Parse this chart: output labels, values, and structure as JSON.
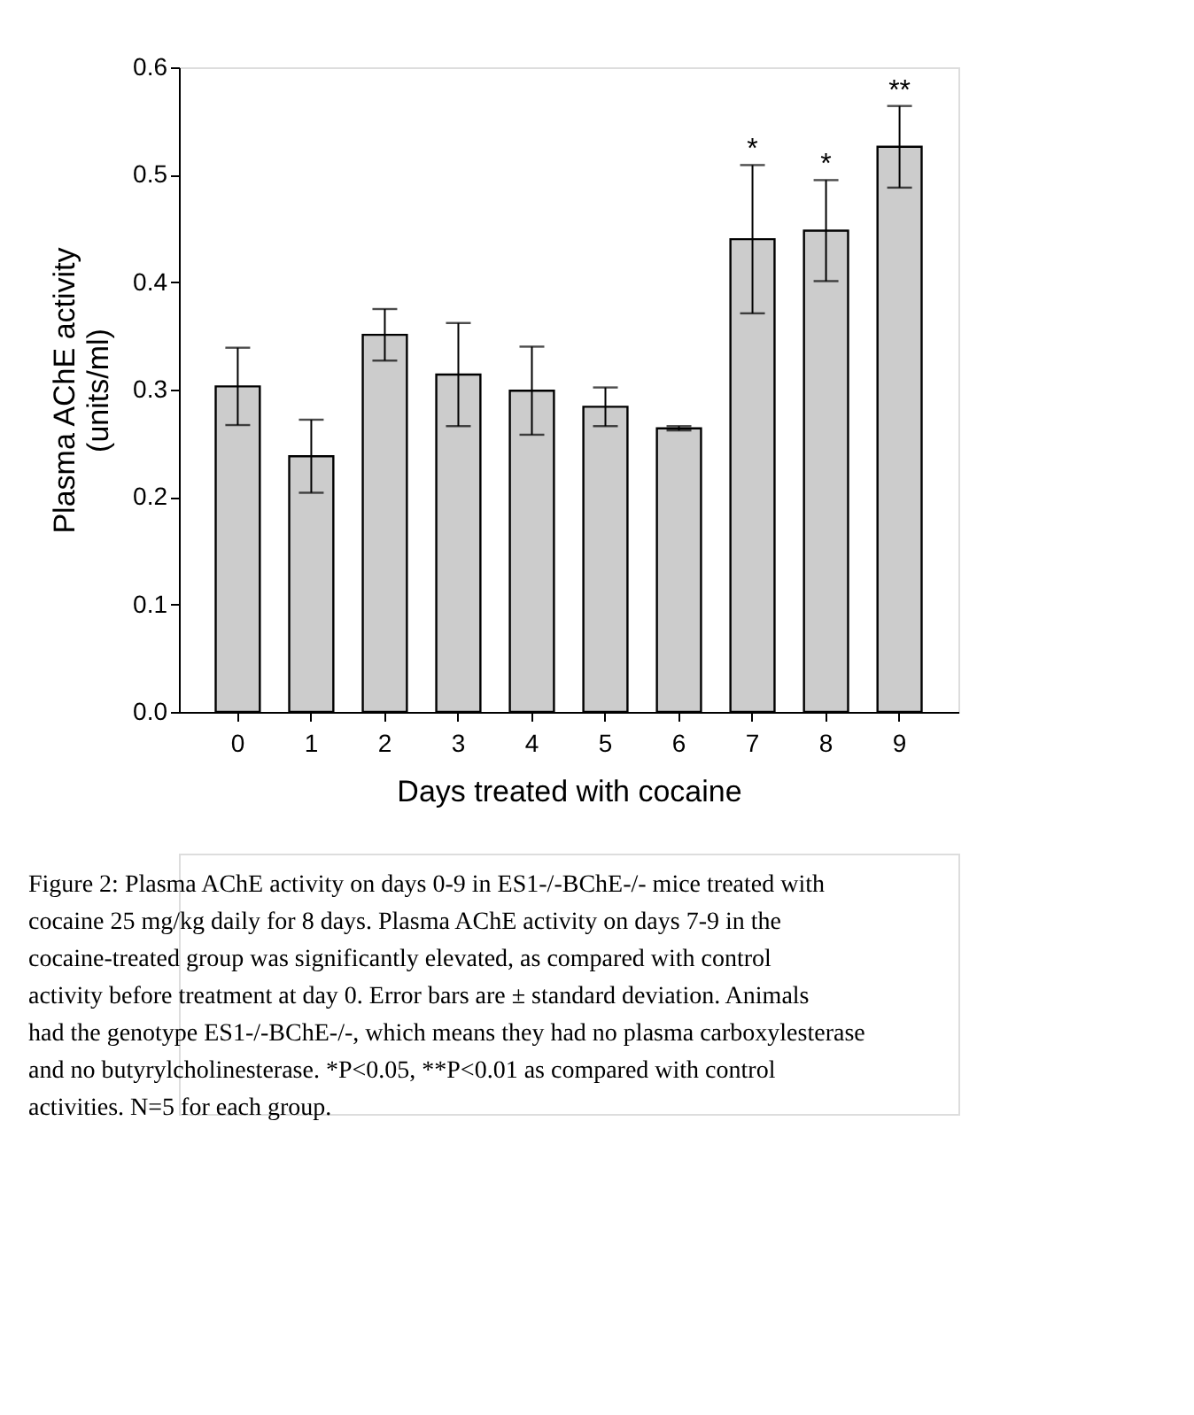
{
  "chart_data": {
    "type": "bar",
    "xlabel": "Days treated with cocaine",
    "ylabel": "Plasma AChE activity\n(units/ml)",
    "categories": [
      "0",
      "1",
      "2",
      "3",
      "4",
      "5",
      "6",
      "7",
      "8",
      "9"
    ],
    "values": [
      0.303,
      0.238,
      0.351,
      0.314,
      0.299,
      0.284,
      0.264,
      0.44,
      0.448,
      0.526
    ],
    "errors": [
      0.036,
      0.034,
      0.024,
      0.048,
      0.041,
      0.018,
      0.002,
      0.069,
      0.047,
      0.038
    ],
    "color": "#cccccc",
    "ylim": [
      0,
      0.6
    ],
    "yticks": [
      {
        "value": 0,
        "label": "0.0"
      },
      {
        "value": 0.1,
        "label": "0.1"
      },
      {
        "value": 0.2,
        "label": "0.2"
      },
      {
        "value": 0.3,
        "label": "0.3"
      },
      {
        "value": 0.4,
        "label": "0.4"
      },
      {
        "value": 0.5,
        "label": "0.5"
      },
      {
        "value": 0.6,
        "label": "0.6"
      }
    ],
    "grid": false,
    "annotations": [
      {
        "text": "*",
        "x": "7",
        "y": 0.509
      },
      {
        "text": "*",
        "x": "8",
        "y": 0.495
      },
      {
        "text": "**",
        "x": "9",
        "y": 0.564
      },
      "Figure 2: Plasma AChE activity on days 0-9 in ES1-/-BChE-/- mice treated with cocaine 25 mg/kg daily for 8 days. Plasma AChE activity on days 7-9 in the cocaine-treated group was significantly elevated, as compared with control activity before treatment at day 0. Error bars are ± standard deviation. Animals had the genotype ES1-/-BChE-/-, which means they had no plasma carboxylesterase and no butyrylcholinesterase. *P<0.05, **P<0.01 as compared with control activities. N=5 for each group."
    ]
  }
}
